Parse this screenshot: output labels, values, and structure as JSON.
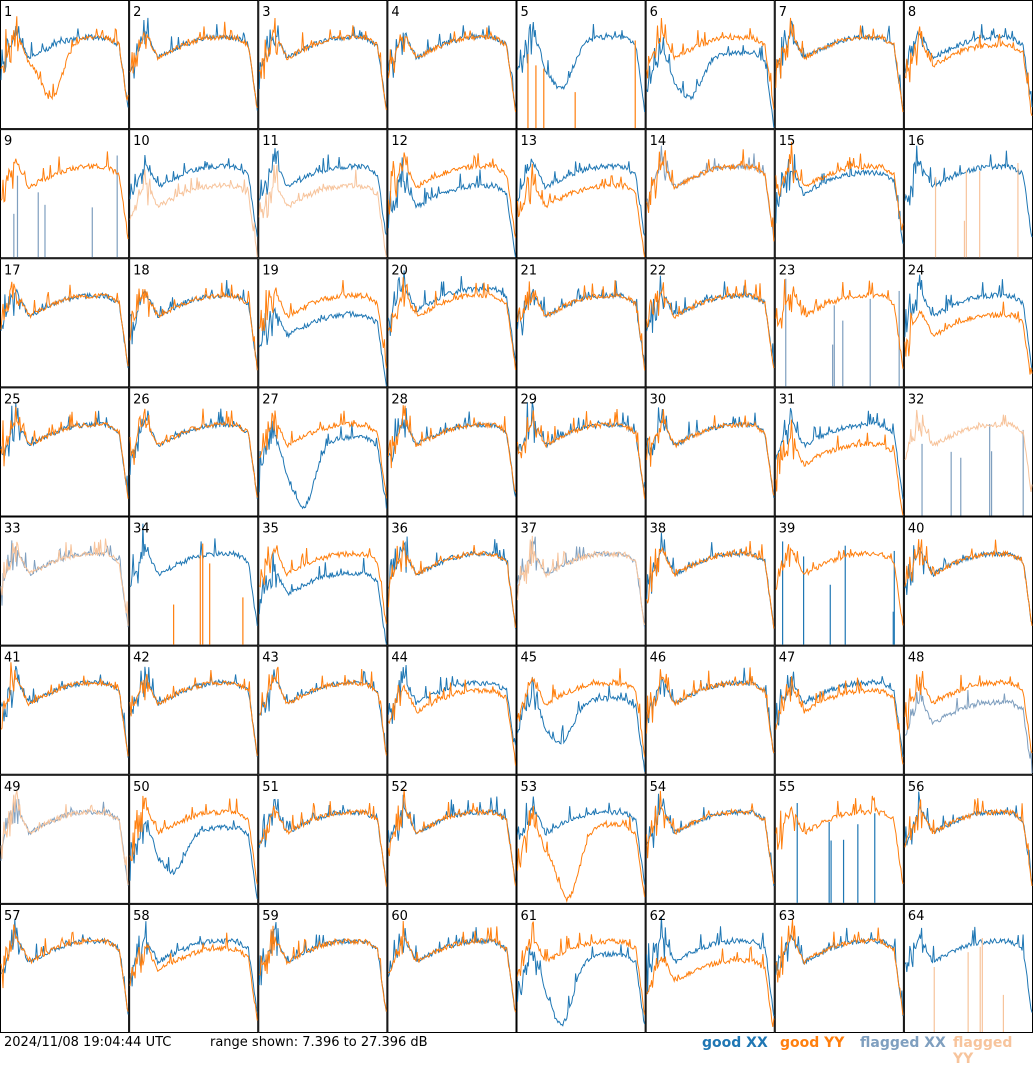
{
  "footer": {
    "timestamp": "2024/11/08 19:04:44 UTC",
    "range_text": "range shown: 7.396 to 27.396 dB"
  },
  "legend": {
    "good_xx": "good XX",
    "good_yy": "good YY",
    "flagged_xx": "flagged XX",
    "flagged_yy": "flagged YY"
  },
  "colors": {
    "good_xx": "#1f77b4",
    "good_yy": "#ff7f0e",
    "flagged_xx": "#7f9fbf",
    "flagged_yy": "#f7c49c"
  },
  "chart_data": {
    "type": "line",
    "grid": "8x8 small multiples",
    "range_db": [
      7.396,
      27.396
    ],
    "panels": [
      {
        "id": 1,
        "xx": "good",
        "yy": "good",
        "shape": "xx_above_deep_yy_dip_bottom"
      },
      {
        "id": 2,
        "xx": "good",
        "yy": "good",
        "shape": "normal"
      },
      {
        "id": 3,
        "xx": "good",
        "yy": "good",
        "shape": "normal"
      },
      {
        "id": 4,
        "xx": "good",
        "yy": "good",
        "shape": "normal"
      },
      {
        "id": 5,
        "xx": "good",
        "yy": "good",
        "shape": "xx_dip_yy_low_spikes"
      },
      {
        "id": 6,
        "xx": "good",
        "yy": "good",
        "shape": "xx_below_dip"
      },
      {
        "id": 7,
        "xx": "good",
        "yy": "good",
        "shape": "normal"
      },
      {
        "id": 8,
        "xx": "good",
        "yy": "good",
        "shape": "yy_slightly_below"
      },
      {
        "id": 9,
        "xx": "flagged",
        "yy": "good",
        "shape": "xx_low_spikes"
      },
      {
        "id": 10,
        "xx": "good",
        "yy": "flagged",
        "shape": "yy_below_flagged"
      },
      {
        "id": 11,
        "xx": "good",
        "yy": "flagged",
        "shape": "yy_below_flagged"
      },
      {
        "id": 12,
        "xx": "good",
        "yy": "good",
        "shape": "xx_below"
      },
      {
        "id": 13,
        "xx": "good",
        "yy": "good",
        "shape": "yy_below"
      },
      {
        "id": 14,
        "xx": "flagged",
        "yy": "good",
        "shape": "normal"
      },
      {
        "id": 15,
        "xx": "good",
        "yy": "good",
        "shape": "xx_slightly_below"
      },
      {
        "id": 16,
        "xx": "good",
        "yy": "flagged",
        "shape": "yy_low_spikes"
      },
      {
        "id": 17,
        "xx": "good",
        "yy": "good",
        "shape": "normal"
      },
      {
        "id": 18,
        "xx": "good",
        "yy": "good",
        "shape": "normal"
      },
      {
        "id": 19,
        "xx": "good",
        "yy": "good",
        "shape": "xx_below"
      },
      {
        "id": 20,
        "xx": "good",
        "yy": "good",
        "shape": "xx_slightly_above"
      },
      {
        "id": 21,
        "xx": "good",
        "yy": "good",
        "shape": "normal"
      },
      {
        "id": 22,
        "xx": "good",
        "yy": "good",
        "shape": "normal"
      },
      {
        "id": 23,
        "xx": "flagged",
        "yy": "good",
        "shape": "xx_low_spikes"
      },
      {
        "id": 24,
        "xx": "good",
        "yy": "good",
        "shape": "yy_below"
      },
      {
        "id": 25,
        "xx": "good",
        "yy": "good",
        "shape": "normal"
      },
      {
        "id": 26,
        "xx": "good",
        "yy": "good",
        "shape": "normal"
      },
      {
        "id": 27,
        "xx": "good",
        "yy": "good",
        "shape": "xx_deep_dip"
      },
      {
        "id": 28,
        "xx": "good",
        "yy": "good",
        "shape": "normal"
      },
      {
        "id": 29,
        "xx": "good",
        "yy": "good",
        "shape": "normal"
      },
      {
        "id": 30,
        "xx": "good",
        "yy": "good",
        "shape": "normal"
      },
      {
        "id": 31,
        "xx": "good",
        "yy": "good",
        "shape": "yy_below"
      },
      {
        "id": 32,
        "xx": "flagged",
        "yy": "flagged",
        "shape": "yy_flagged_only"
      },
      {
        "id": 33,
        "xx": "flagged",
        "yy": "flagged",
        "shape": "normal"
      },
      {
        "id": 34,
        "xx": "good",
        "yy": "good",
        "shape": "yy_low_spikes"
      },
      {
        "id": 35,
        "xx": "good",
        "yy": "good",
        "shape": "xx_below"
      },
      {
        "id": 36,
        "xx": "good",
        "yy": "good",
        "shape": "normal"
      },
      {
        "id": 37,
        "xx": "flagged",
        "yy": "flagged",
        "shape": "normal"
      },
      {
        "id": 38,
        "xx": "good",
        "yy": "good",
        "shape": "normal"
      },
      {
        "id": 39,
        "xx": "good",
        "yy": "good",
        "shape": "xx_low_spikes"
      },
      {
        "id": 40,
        "xx": "good",
        "yy": "good",
        "shape": "normal"
      },
      {
        "id": 41,
        "xx": "good",
        "yy": "good",
        "shape": "normal"
      },
      {
        "id": 42,
        "xx": "good",
        "yy": "good",
        "shape": "normal"
      },
      {
        "id": 43,
        "xx": "good",
        "yy": "good",
        "shape": "normal"
      },
      {
        "id": 44,
        "xx": "good",
        "yy": "good",
        "shape": "yy_slightly_below"
      },
      {
        "id": 45,
        "xx": "good",
        "yy": "good",
        "shape": "xx_below_dip"
      },
      {
        "id": 46,
        "xx": "good",
        "yy": "good",
        "shape": "normal"
      },
      {
        "id": 47,
        "xx": "good",
        "yy": "good",
        "shape": "yy_slightly_below"
      },
      {
        "id": 48,
        "xx": "flagged",
        "yy": "good",
        "shape": "xx_below"
      },
      {
        "id": 49,
        "xx": "flagged",
        "yy": "flagged",
        "shape": "normal"
      },
      {
        "id": 50,
        "xx": "good",
        "yy": "good",
        "shape": "xx_below_dip"
      },
      {
        "id": 51,
        "xx": "good",
        "yy": "good",
        "shape": "normal"
      },
      {
        "id": 52,
        "xx": "good",
        "yy": "good",
        "shape": "normal"
      },
      {
        "id": 53,
        "xx": "good",
        "yy": "good",
        "shape": "yy_deep_dip"
      },
      {
        "id": 54,
        "xx": "good",
        "yy": "good",
        "shape": "normal"
      },
      {
        "id": 55,
        "xx": "good",
        "yy": "good",
        "shape": "xx_low_spikes"
      },
      {
        "id": 56,
        "xx": "good",
        "yy": "good",
        "shape": "normal"
      },
      {
        "id": 57,
        "xx": "good",
        "yy": "good",
        "shape": "normal"
      },
      {
        "id": 58,
        "xx": "good",
        "yy": "good",
        "shape": "yy_slightly_below"
      },
      {
        "id": 59,
        "xx": "good",
        "yy": "good",
        "shape": "normal"
      },
      {
        "id": 60,
        "xx": "good",
        "yy": "good",
        "shape": "normal"
      },
      {
        "id": 61,
        "xx": "good",
        "yy": "good",
        "shape": "xx_deep_dip"
      },
      {
        "id": 62,
        "xx": "good",
        "yy": "good",
        "shape": "yy_below"
      },
      {
        "id": 63,
        "xx": "good",
        "yy": "good",
        "shape": "normal"
      },
      {
        "id": 64,
        "xx": "good",
        "yy": "flagged",
        "shape": "yy_low_spikes"
      }
    ]
  }
}
